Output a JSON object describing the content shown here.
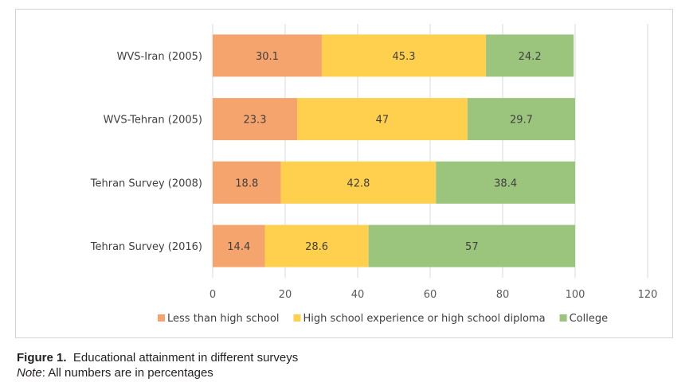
{
  "chart_data": {
    "type": "bar",
    "orientation": "horizontal",
    "stacked": true,
    "categories": [
      "WVS-Iran (2005)",
      "WVS-Tehran (2005)",
      "Tehran Survey (2008)",
      "Tehran Survey (2016)"
    ],
    "series": [
      {
        "name": "Less than high school",
        "color": "#f4a46c",
        "values": [
          30.1,
          23.3,
          18.8,
          14.4
        ]
      },
      {
        "name": "High school experience or high school diploma",
        "color": "#ffd04d",
        "values": [
          45.3,
          47,
          42.8,
          28.6
        ]
      },
      {
        "name": "College",
        "color": "#9bc47d",
        "values": [
          24.2,
          29.7,
          38.4,
          57
        ]
      }
    ],
    "xlim": [
      0,
      120
    ],
    "xticks": [
      "0",
      "20",
      "40",
      "60",
      "80",
      "100",
      "120"
    ],
    "grid": "vertical",
    "legend": "bottom"
  },
  "caption": {
    "figure_label": "Figure 1",
    "figure_text": "Educational attainment in different surveys",
    "note_label": "Note",
    "note_text": ": All numbers are in percentages"
  }
}
